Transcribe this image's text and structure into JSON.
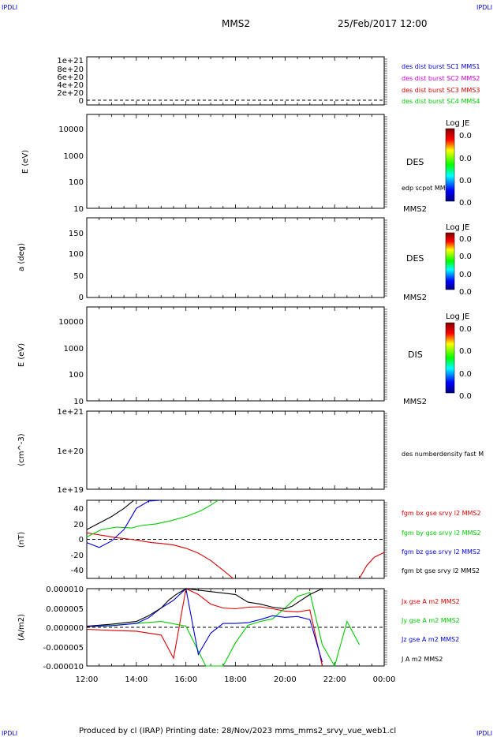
{
  "corner": {
    "tl": "IPDLI",
    "tr": "IPDLI",
    "bl": "IPDLI",
    "br": "IPDLI"
  },
  "header": {
    "title": "MMS2",
    "datetime": "25/Feb/2017 12:00"
  },
  "footer": {
    "text": "Produced by cl (IRAP)   Printing date: 28/Nov/2023   mms_mms2_srvy_vue_web1.cl"
  },
  "colors": {
    "blue": "#0000dd",
    "magenta": "#cc00cc",
    "red": "#dd0000",
    "green": "#00cc00",
    "black": "#000000"
  },
  "x_axis": {
    "ticks": [
      "12:00",
      "14:00",
      "16:00",
      "18:00",
      "20:00",
      "22:00",
      "00:00"
    ]
  },
  "chart_data": [
    {
      "type": "line",
      "panel": "distribution-status",
      "ylabel": "",
      "yticks": [
        "1e+21",
        "8e+20",
        "6e+20",
        "4e+20",
        "2e+20",
        "0"
      ],
      "series": [
        {
          "name": "des dist burst SC1 MMS1",
          "color": "blue",
          "values": []
        },
        {
          "name": "des dist burst SC2 MMS2",
          "color": "magenta",
          "values": []
        },
        {
          "name": "des dist burst SC3 MMS3",
          "color": "red",
          "values": []
        },
        {
          "name": "des dist burst SC4 MMS4",
          "color": "green",
          "values": []
        }
      ]
    },
    {
      "type": "heatmap",
      "panel": "des-energy",
      "ylabel": "E (eV)",
      "yticks": [
        "10000",
        "1000",
        "100",
        "10"
      ],
      "instrument": "DES",
      "spacecraft": "MMS2",
      "overlay": "edp scpot MMS2",
      "colorbar": {
        "label": "Log JE",
        "ticks": [
          "0.0",
          "0.0",
          "0.0",
          "0.0"
        ]
      }
    },
    {
      "type": "heatmap",
      "panel": "des-pitch",
      "ylabel": "a (deg)",
      "yticks": [
        "150",
        "100",
        "50",
        "0"
      ],
      "instrument": "DES",
      "spacecraft": "MMS2",
      "colorbar": {
        "label": "Log JE",
        "ticks": [
          "0.0",
          "0.0",
          "0.0",
          "0.0"
        ]
      }
    },
    {
      "type": "heatmap",
      "panel": "dis-energy",
      "ylabel": "E (eV)",
      "yticks": [
        "10000",
        "1000",
        "100",
        "10"
      ],
      "instrument": "DIS",
      "spacecraft": "MMS2",
      "colorbar": {
        "label": "Log JE",
        "ticks": [
          "0.0",
          "0.0",
          "0.0",
          "0.0"
        ]
      }
    },
    {
      "type": "line",
      "panel": "density",
      "ylabel": "(cm^-3)",
      "yticks": [
        "1e+21",
        "1e+20",
        "1e+19"
      ],
      "series": [
        {
          "name": "des numberdensity fast M",
          "color": "black",
          "values": []
        }
      ]
    },
    {
      "type": "line",
      "panel": "magnetic-field",
      "ylabel": "(nT)",
      "ylim": [
        -48,
        48
      ],
      "yticks": [
        "40",
        "20",
        "0",
        "-20",
        "-40"
      ],
      "x_unit": "hours since 12:00",
      "series": [
        {
          "name": "fgm bx gse srvy l2 MMS2",
          "color": "red",
          "x": [
            0,
            0.6,
            1.2,
            1.8,
            2.2,
            2.6,
            3.0,
            3.5,
            4.0,
            4.5,
            5.0,
            5.5,
            5.9,
            6.0,
            11.0,
            11.3,
            11.6,
            12.0
          ],
          "y": [
            8,
            5,
            2,
            0,
            -2,
            -4,
            -5,
            -7,
            -11,
            -17,
            -26,
            -38,
            -48,
            null,
            -48,
            -32,
            -22,
            -16
          ]
        },
        {
          "name": "fgm by gse srvy l2 MMS2",
          "color": "green",
          "x": [
            0,
            0.6,
            1.2,
            1.8,
            2.2,
            2.8,
            3.4,
            4.0,
            4.6,
            5.0,
            5.3
          ],
          "y": [
            3,
            12,
            15,
            14,
            17,
            19,
            23,
            28,
            35,
            42,
            48
          ]
        },
        {
          "name": "fgm bz gse srvy l2 MMS2",
          "color": "blue",
          "x": [
            0,
            0.5,
            1.0,
            1.5,
            2.0,
            2.5,
            3.0
          ],
          "y": [
            -4,
            -10,
            -2,
            12,
            38,
            47,
            48
          ]
        },
        {
          "name": "fgm bt gse srvy l2 MMS2",
          "color": "black",
          "x": [
            0,
            0.5,
            1.0,
            1.5,
            1.9
          ],
          "y": [
            12,
            20,
            28,
            38,
            48
          ]
        }
      ]
    },
    {
      "type": "line",
      "panel": "current-density",
      "ylabel": "(A/m2)",
      "ylim": [
        -1e-05,
        1e-05
      ],
      "yticks": [
        "0.000010",
        "0.000005",
        "0.000000",
        "-0.000005",
        "-0.000010"
      ],
      "x_unit": "hours since 12:00",
      "series": [
        {
          "name": "Jx gse A m2 MMS2",
          "color": "red",
          "x": [
            0,
            1.0,
            2.0,
            3.0,
            3.5,
            4.0,
            4.5,
            5.0,
            5.5,
            6.0,
            6.5,
            7.0,
            7.5,
            8.0,
            8.5,
            9.0,
            9.5
          ],
          "y": [
            -5e-07,
            -8e-07,
            -1e-06,
            -2e-06,
            -8e-06,
            1e-05,
            8.5e-06,
            6e-06,
            5e-06,
            4.8e-06,
            5.2e-06,
            5.3e-06,
            4.8e-06,
            4.2e-06,
            4e-06,
            4.5e-06,
            -1e-05
          ]
        },
        {
          "name": "Jy gse A m2 MMS2",
          "color": "green",
          "x": [
            0,
            1.0,
            2.0,
            3.0,
            4.0,
            4.8,
            5.5,
            6.0,
            6.5,
            7.0,
            7.5,
            8.0,
            8.5,
            9.0,
            9.5,
            10.0,
            10.5,
            11.0
          ],
          "y": [
            2e-07,
            5e-07,
            1e-06,
            1.5e-06,
            3e-07,
            -1e-05,
            -1e-05,
            -4e-06,
            5e-07,
            1.5e-06,
            2.2e-06,
            5e-06,
            8e-06,
            9e-06,
            -4.5e-06,
            -1e-05,
            1.5e-06,
            -4.5e-06
          ]
        },
        {
          "name": "Jz gse A m2 MMS2",
          "color": "blue",
          "x": [
            0,
            1.0,
            2.0,
            2.5,
            3.0,
            3.5,
            4.0,
            4.5,
            5.0,
            5.5,
            6.0,
            6.5,
            7.0,
            7.5,
            8.0,
            8.5,
            9.0,
            9.5
          ],
          "y": [
            2e-07,
            4e-07,
            1e-06,
            2.5e-06,
            5e-06,
            7e-06,
            1e-05,
            -7e-06,
            -1.5e-06,
            1e-06,
            1e-06,
            1.2e-06,
            2e-06,
            3e-06,
            2.6e-06,
            2.8e-06,
            2e-06,
            -9e-06
          ]
        },
        {
          "name": "J A m2 MMS2",
          "color": "black",
          "x": [
            0,
            1.0,
            2.0,
            2.5,
            3.0,
            3.3,
            3.6,
            4.0,
            6.0,
            6.5,
            7.0,
            7.5,
            8.0,
            8.3,
            8.6,
            9.0,
            9.5
          ],
          "y": [
            3e-07,
            8e-07,
            1.5e-06,
            3e-06,
            5e-06,
            7e-06,
            8.5e-06,
            1e-05,
            8.5e-06,
            6.5e-06,
            6e-06,
            5.2e-06,
            4.8e-06,
            5.5e-06,
            6.8e-06,
            8.5e-06,
            1e-05
          ]
        }
      ]
    }
  ]
}
